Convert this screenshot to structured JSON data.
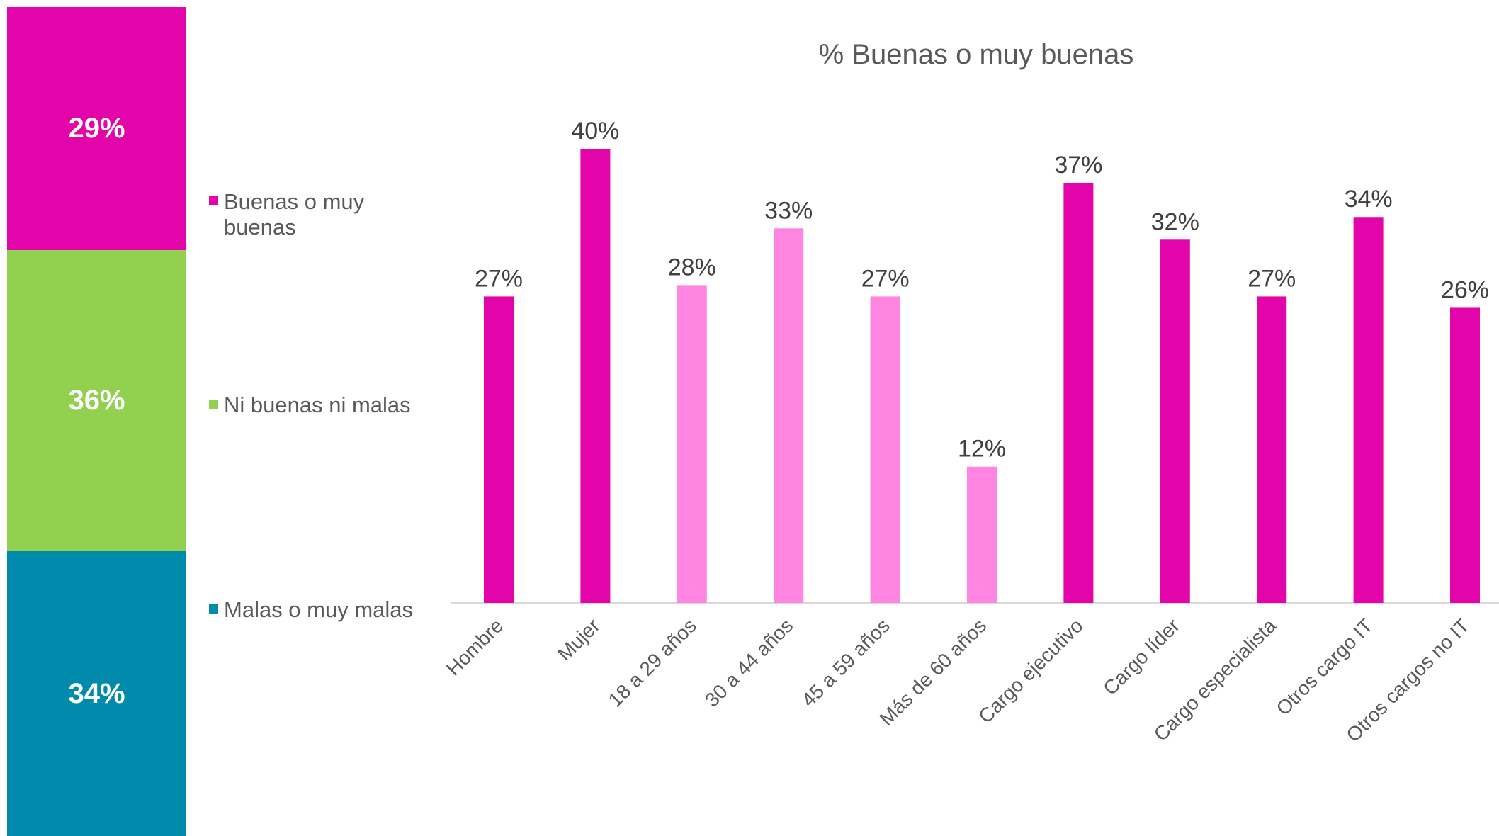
{
  "colors": {
    "buenas": "#e305a9",
    "buenas_light": "#ff85e0",
    "ni": "#92d050",
    "malas": "#008aab",
    "axis": "#d9d9d9",
    "text": "#595959"
  },
  "stack": {
    "segments": [
      {
        "key": "buenas",
        "label": "29%",
        "value": 29
      },
      {
        "key": "ni",
        "label": "36%",
        "value": 36
      },
      {
        "key": "malas",
        "label": "34%",
        "value": 34
      }
    ]
  },
  "legend": {
    "items": [
      {
        "key": "buenas",
        "label": "Buenas o muy buenas"
      },
      {
        "key": "ni",
        "label": "Ni buenas ni malas"
      },
      {
        "key": "malas",
        "label": "Malas o muy malas"
      }
    ]
  },
  "chart_data": {
    "type": "bar",
    "title": "% Buenas o muy buenas",
    "xlabel": "",
    "ylabel": "",
    "ylim": [
      0,
      45
    ],
    "grid": false,
    "categories": [
      "Hombre",
      "Mujer",
      "18 a 29 años",
      "30 a 44 años",
      "45 a 59 años",
      "Más de 60 años",
      "Cargo ejecutivo",
      "Cargo líder",
      "Cargo especialista",
      "Otros cargo IT",
      "Otros cargos no IT"
    ],
    "values": [
      27,
      40,
      28,
      33,
      27,
      12,
      37,
      32,
      27,
      34,
      26
    ],
    "data_labels": [
      "27%",
      "40%",
      "28%",
      "33%",
      "27%",
      "12%",
      "37%",
      "32%",
      "27%",
      "34%",
      "26%"
    ],
    "bar_colors": [
      "#e305a9",
      "#e305a9",
      "#ff85e0",
      "#ff85e0",
      "#ff85e0",
      "#ff85e0",
      "#e305a9",
      "#e305a9",
      "#e305a9",
      "#e305a9",
      "#e305a9"
    ]
  }
}
